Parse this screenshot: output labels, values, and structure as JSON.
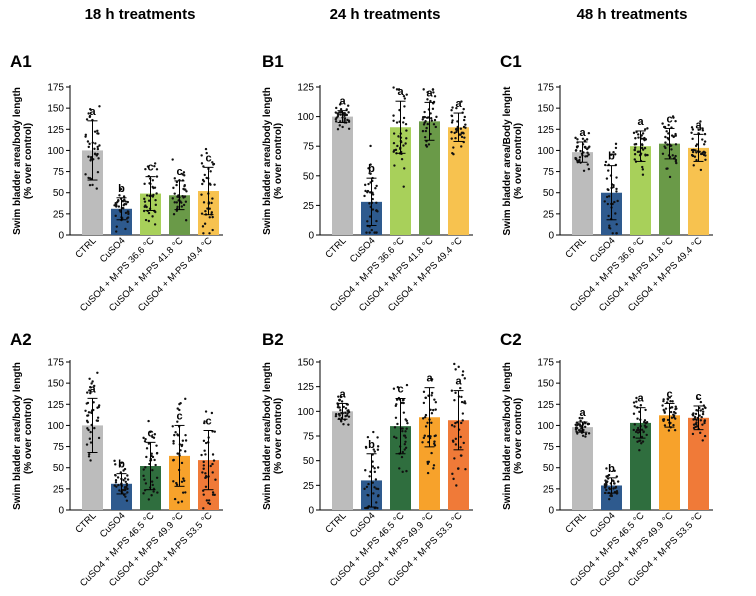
{
  "columns": [
    "18 h treatments",
    "24 h treatments",
    "48 h treatments"
  ],
  "ylabel_default": "Swim bladder area/body length",
  "ylabel_sub": "(% over control)",
  "chart_data": [
    {
      "id": "A1",
      "type": "bar",
      "ylabel": "Swim bladder area/body length",
      "ylabel2": "(% over control)",
      "ylim": [
        0,
        175
      ],
      "ticks": [
        0,
        25,
        50,
        75,
        100,
        125,
        150,
        175
      ],
      "categories": [
        "CTRL",
        "CuSO4",
        "CuSO4 + M-PS 36.6 °C",
        "CuSO4 + M-PS 41.8 °C",
        "CuSO4 + M-PS 49.4 °C"
      ],
      "values": [
        100,
        31,
        49,
        47,
        52
      ],
      "errors": [
        35,
        13,
        20,
        17,
        28
      ],
      "letters": [
        "a",
        "b",
        "c",
        "c",
        "c"
      ],
      "colors": [
        "#bcbcbc",
        "#2e5a8e",
        "#a8d05a",
        "#6a9a48",
        "#f7c24f"
      ]
    },
    {
      "id": "B1",
      "type": "bar",
      "ylabel": "Swim bladder area/body length",
      "ylabel2": "(% over control)",
      "ylim": [
        0,
        125
      ],
      "ticks": [
        0,
        25,
        50,
        75,
        100,
        125
      ],
      "categories": [
        "CTRL",
        "CuSO4",
        "CuSO4 + M-PS 36.6 °C",
        "CuSO4 + M-PS 41.8 °C",
        "CuSO4 + M-PS 49.4 °C"
      ],
      "values": [
        100,
        28,
        91,
        96,
        91
      ],
      "errors": [
        5,
        20,
        22,
        16,
        12
      ],
      "letters": [
        "a",
        "b",
        "a",
        "a",
        "a"
      ],
      "colors": [
        "#bcbcbc",
        "#2e5a8e",
        "#a8d05a",
        "#6a9a48",
        "#f7c24f"
      ]
    },
    {
      "id": "C1",
      "type": "bar",
      "ylabel": "Swim bladder area/Body lenght",
      "ylabel2": "(% over control)",
      "ylim": [
        0,
        175
      ],
      "ticks": [
        0,
        25,
        50,
        75,
        100,
        125,
        150,
        175
      ],
      "categories": [
        "CTRL",
        "CuSO4",
        "CuSO4 + M-PS 36.6 °C",
        "CuSO4 + M-PS 41.8 °C",
        "CuSO4 + M-PS 49.4 °C"
      ],
      "values": [
        98,
        50,
        105,
        108,
        103
      ],
      "errors": [
        12,
        32,
        18,
        18,
        16
      ],
      "letters": [
        "a",
        "b",
        "a",
        "c",
        "a"
      ],
      "colors": [
        "#bcbcbc",
        "#2e5a8e",
        "#a8d05a",
        "#6a9a48",
        "#f7c24f"
      ]
    },
    {
      "id": "A2",
      "type": "bar",
      "ylabel": "Swim bladder area/body length",
      "ylabel2": "(% over control)",
      "ylim": [
        0,
        175
      ],
      "ticks": [
        0,
        25,
        50,
        75,
        100,
        125,
        150,
        175
      ],
      "categories": [
        "CTRL",
        "CuSO4",
        "CuSO4 + M-PS 46.5 °C",
        "CuSO4 + M-PS 49.9 °C",
        "CuSO4 + M-PS 53.5 °C"
      ],
      "values": [
        100,
        31,
        52,
        64,
        59
      ],
      "errors": [
        32,
        12,
        28,
        36,
        35
      ],
      "letters": [
        "a",
        "b",
        "c",
        "c",
        "c"
      ],
      "colors": [
        "#bcbcbc",
        "#2e5a8e",
        "#2f6e3e",
        "#f7a22b",
        "#f07a38"
      ]
    },
    {
      "id": "B2",
      "type": "bar",
      "ylabel": "Swim bladder area/body length",
      "ylabel2": "(% over control)",
      "ylim": [
        0,
        150
      ],
      "ticks": [
        0,
        25,
        50,
        75,
        100,
        125,
        150
      ],
      "categories": [
        "CTRL",
        "CuSO4",
        "CuSO4 + M-PS 46.5 °C",
        "CuSO4 + M-PS 49.9 °C",
        "CuSO4 + M-PS 53.5 °C"
      ],
      "values": [
        100,
        30,
        85,
        94,
        91
      ],
      "errors": [
        8,
        27,
        28,
        30,
        30
      ],
      "letters": [
        "a",
        "b",
        "c",
        "a",
        "a"
      ],
      "colors": [
        "#bcbcbc",
        "#2e5a8e",
        "#2f6e3e",
        "#f7a22b",
        "#f07a38"
      ]
    },
    {
      "id": "C2",
      "type": "bar",
      "ylabel": "Swim bladder area/body length",
      "ylabel2": "(% over control)",
      "ylim": [
        0,
        175
      ],
      "ticks": [
        0,
        25,
        50,
        75,
        100,
        125,
        150,
        175
      ],
      "categories": [
        "CTRL",
        "CuSO4",
        "CuSO4 + M-PS 46.5 °C",
        "CuSO4 + M-PS 49.9 °C",
        "CuSO4 + M-PS 53.5 °C"
      ],
      "values": [
        98,
        29,
        103,
        112,
        109
      ],
      "errors": [
        6,
        9,
        18,
        14,
        14
      ],
      "letters": [
        "a",
        "b",
        "a",
        "c",
        "c"
      ],
      "colors": [
        "#bcbcbc",
        "#2e5a8e",
        "#2f6e3e",
        "#f7a22b",
        "#f07a38"
      ]
    }
  ]
}
